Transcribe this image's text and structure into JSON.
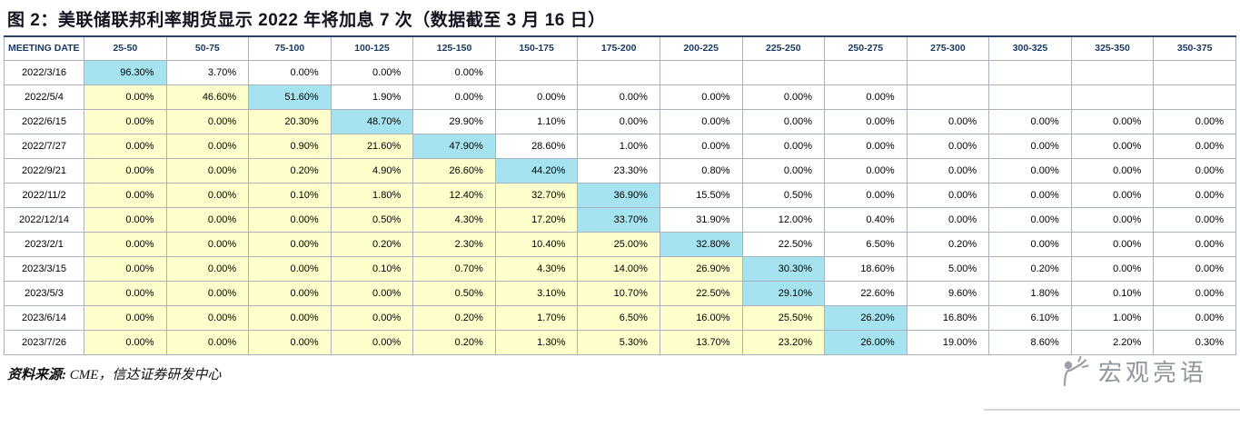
{
  "title": "图 2：美联储联邦利率期货显示 2022 年将加息 7 次（数据截至 3 月 16 日）",
  "source": {
    "label": "资料来源:",
    "text": " CME，信达证券研发中心"
  },
  "watermark": {
    "name": "宏观亮语"
  },
  "colors": {
    "highlight": "#a5e3f0",
    "band": "#ffffcc",
    "header_text": "#17375e"
  },
  "chart_data": {
    "type": "table",
    "columns": [
      "MEETING DATE",
      "25-50",
      "50-75",
      "75-100",
      "100-125",
      "125-150",
      "150-175",
      "175-200",
      "200-225",
      "225-250",
      "250-275",
      "275-300",
      "300-325",
      "325-350",
      "350-375"
    ],
    "rows": [
      {
        "date": "2022/3/16",
        "highlight_index": 0,
        "values": [
          "96.30%",
          "3.70%",
          "0.00%",
          "0.00%",
          "0.00%",
          null,
          null,
          null,
          null,
          null,
          null,
          null,
          null,
          null
        ]
      },
      {
        "date": "2022/5/4",
        "highlight_index": 2,
        "values": [
          "0.00%",
          "46.60%",
          "51.60%",
          "1.90%",
          "0.00%",
          "0.00%",
          "0.00%",
          "0.00%",
          "0.00%",
          "0.00%",
          null,
          null,
          null,
          null
        ]
      },
      {
        "date": "2022/6/15",
        "highlight_index": 3,
        "values": [
          "0.00%",
          "0.00%",
          "20.30%",
          "48.70%",
          "29.90%",
          "1.10%",
          "0.00%",
          "0.00%",
          "0.00%",
          "0.00%",
          "0.00%",
          "0.00%",
          "0.00%",
          "0.00%"
        ]
      },
      {
        "date": "2022/7/27",
        "highlight_index": 4,
        "values": [
          "0.00%",
          "0.00%",
          "0.90%",
          "21.60%",
          "47.90%",
          "28.60%",
          "1.00%",
          "0.00%",
          "0.00%",
          "0.00%",
          "0.00%",
          "0.00%",
          "0.00%",
          "0.00%"
        ]
      },
      {
        "date": "2022/9/21",
        "highlight_index": 5,
        "values": [
          "0.00%",
          "0.00%",
          "0.20%",
          "4.90%",
          "26.60%",
          "44.20%",
          "23.30%",
          "0.80%",
          "0.00%",
          "0.00%",
          "0.00%",
          "0.00%",
          "0.00%",
          "0.00%"
        ]
      },
      {
        "date": "2022/11/2",
        "highlight_index": 6,
        "values": [
          "0.00%",
          "0.00%",
          "0.10%",
          "1.80%",
          "12.40%",
          "32.70%",
          "36.90%",
          "15.50%",
          "0.50%",
          "0.00%",
          "0.00%",
          "0.00%",
          "0.00%",
          "0.00%"
        ]
      },
      {
        "date": "2022/12/14",
        "highlight_index": 6,
        "values": [
          "0.00%",
          "0.00%",
          "0.00%",
          "0.50%",
          "4.30%",
          "17.20%",
          "33.70%",
          "31.90%",
          "12.00%",
          "0.40%",
          "0.00%",
          "0.00%",
          "0.00%",
          "0.00%"
        ]
      },
      {
        "date": "2023/2/1",
        "highlight_index": 7,
        "values": [
          "0.00%",
          "0.00%",
          "0.00%",
          "0.20%",
          "2.30%",
          "10.40%",
          "25.00%",
          "32.80%",
          "22.50%",
          "6.50%",
          "0.20%",
          "0.00%",
          "0.00%",
          "0.00%"
        ]
      },
      {
        "date": "2023/3/15",
        "highlight_index": 8,
        "values": [
          "0.00%",
          "0.00%",
          "0.00%",
          "0.10%",
          "0.70%",
          "4.30%",
          "14.00%",
          "26.90%",
          "30.30%",
          "18.60%",
          "5.00%",
          "0.20%",
          "0.00%",
          "0.00%"
        ]
      },
      {
        "date": "2023/5/3",
        "highlight_index": 8,
        "values": [
          "0.00%",
          "0.00%",
          "0.00%",
          "0.00%",
          "0.50%",
          "3.10%",
          "10.70%",
          "22.50%",
          "29.10%",
          "22.60%",
          "9.60%",
          "1.80%",
          "0.10%",
          "0.00%"
        ]
      },
      {
        "date": "2023/6/14",
        "highlight_index": 9,
        "values": [
          "0.00%",
          "0.00%",
          "0.00%",
          "0.00%",
          "0.20%",
          "1.70%",
          "6.50%",
          "16.00%",
          "25.50%",
          "26.20%",
          "16.80%",
          "6.10%",
          "1.00%",
          "0.00%"
        ]
      },
      {
        "date": "2023/7/26",
        "highlight_index": 9,
        "values": [
          "0.00%",
          "0.00%",
          "0.00%",
          "0.00%",
          "0.20%",
          "1.30%",
          "5.30%",
          "13.70%",
          "23.20%",
          "26.00%",
          "19.00%",
          "8.60%",
          "2.20%",
          "0.30%"
        ]
      }
    ]
  }
}
